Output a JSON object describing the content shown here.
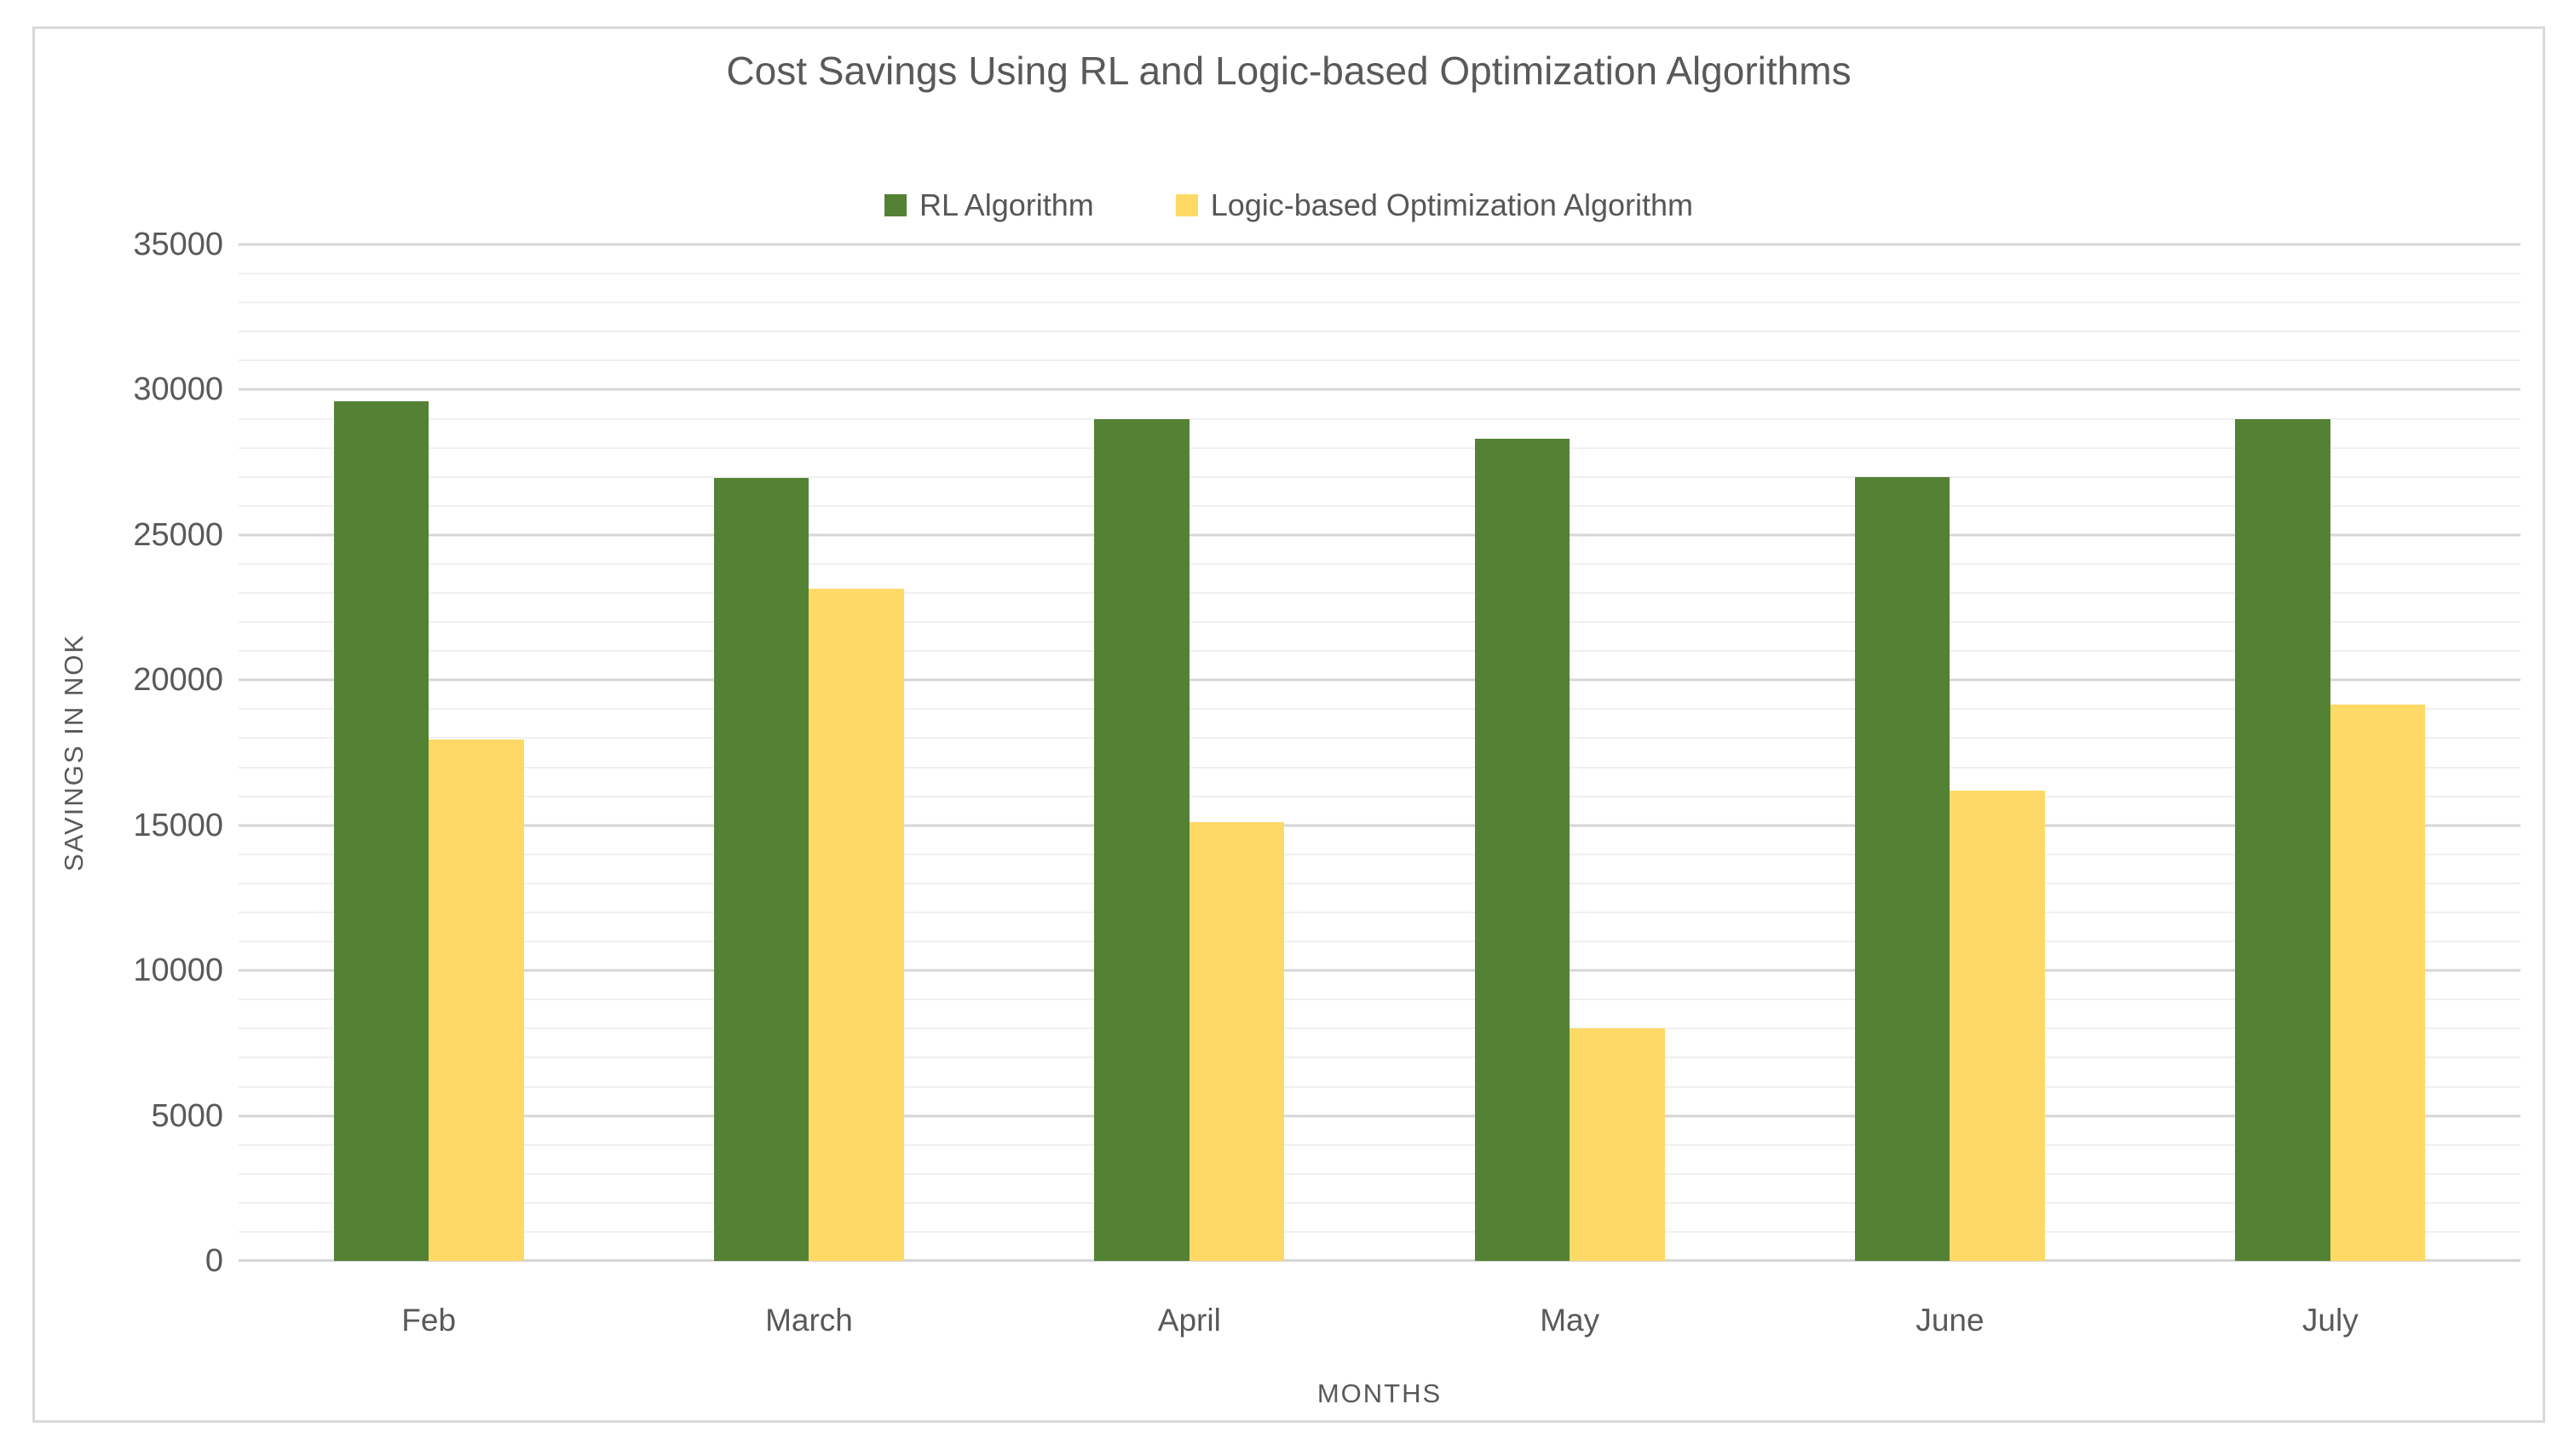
{
  "title": "Cost Savings Using RL and Logic-based Optimization Algorithms",
  "chart_data": {
    "type": "bar",
    "categories": [
      "Feb",
      "March",
      "April",
      "May",
      "June",
      "July"
    ],
    "series": [
      {
        "name": "RL Algorithm",
        "color": "#548235",
        "values": [
          29600,
          26950,
          29000,
          28300,
          27000,
          29000
        ]
      },
      {
        "name": "Logic-based Optimization Algorithm",
        "color": "#FFD966",
        "values": [
          17950,
          23150,
          15100,
          8000,
          16200,
          19150
        ]
      }
    ],
    "xlabel": "MONTHS",
    "ylabel": "SAVINGS IN NOK",
    "ylim": [
      0,
      35000
    ],
    "y_major_step": 5000,
    "y_minor_step": 1000,
    "y_tick_labels": [
      "0",
      "5000",
      "10000",
      "15000",
      "20000",
      "25000",
      "30000",
      "35000"
    ],
    "grid": true,
    "legend_position": "top-center"
  },
  "style": {
    "text_color": "#595959",
    "grid_major_color": "#D6D6D6",
    "grid_minor_color": "#F0F0F0",
    "frame_border_color": "#D9D9D9",
    "background": "#FFFFFF"
  }
}
